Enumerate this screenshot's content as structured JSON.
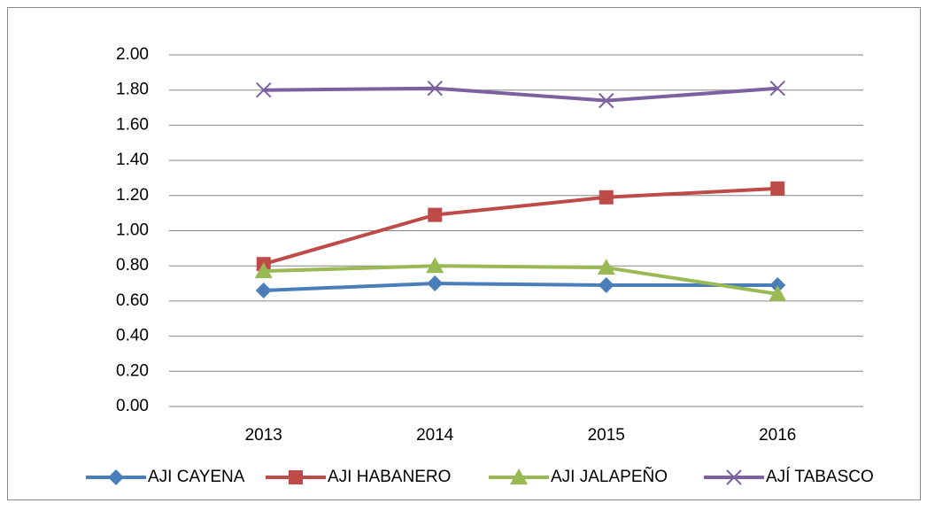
{
  "chart_data": {
    "type": "line",
    "categories": [
      "2013",
      "2014",
      "2015",
      "2016"
    ],
    "series": [
      {
        "name": "AJI CAYENA",
        "color": "#4a7ebb",
        "marker": "diamond",
        "values": [
          0.66,
          0.7,
          0.69,
          0.69
        ]
      },
      {
        "name": "AJI HABANERO",
        "color": "#be4b48",
        "marker": "square",
        "values": [
          0.81,
          1.09,
          1.19,
          1.24
        ]
      },
      {
        "name": "AJI JALAPEÑO",
        "color": "#98b954",
        "marker": "triangle",
        "values": [
          0.77,
          0.8,
          0.79,
          0.64
        ]
      },
      {
        "name": "AJÍ TABASCO",
        "color": "#7d60a0",
        "marker": "x",
        "values": [
          1.8,
          1.81,
          1.74,
          1.81
        ]
      }
    ],
    "ylim": [
      0,
      2
    ],
    "yticks": [
      {
        "value": 0,
        "label": "0.00"
      },
      {
        "value": 0.2,
        "label": "0.20"
      },
      {
        "value": 0.4,
        "label": "0.40"
      },
      {
        "value": 0.6,
        "label": "0.60"
      },
      {
        "value": 0.8,
        "label": "0.80"
      },
      {
        "value": 1,
        "label": "1.00"
      },
      {
        "value": 1.2,
        "label": "1.20"
      },
      {
        "value": 1.4,
        "label": "1.40"
      },
      {
        "value": 1.6,
        "label": "1.60"
      },
      {
        "value": 1.8,
        "label": "1.80"
      },
      {
        "value": 2,
        "label": "2.00"
      }
    ],
    "grid": true,
    "legend": "bottom"
  }
}
